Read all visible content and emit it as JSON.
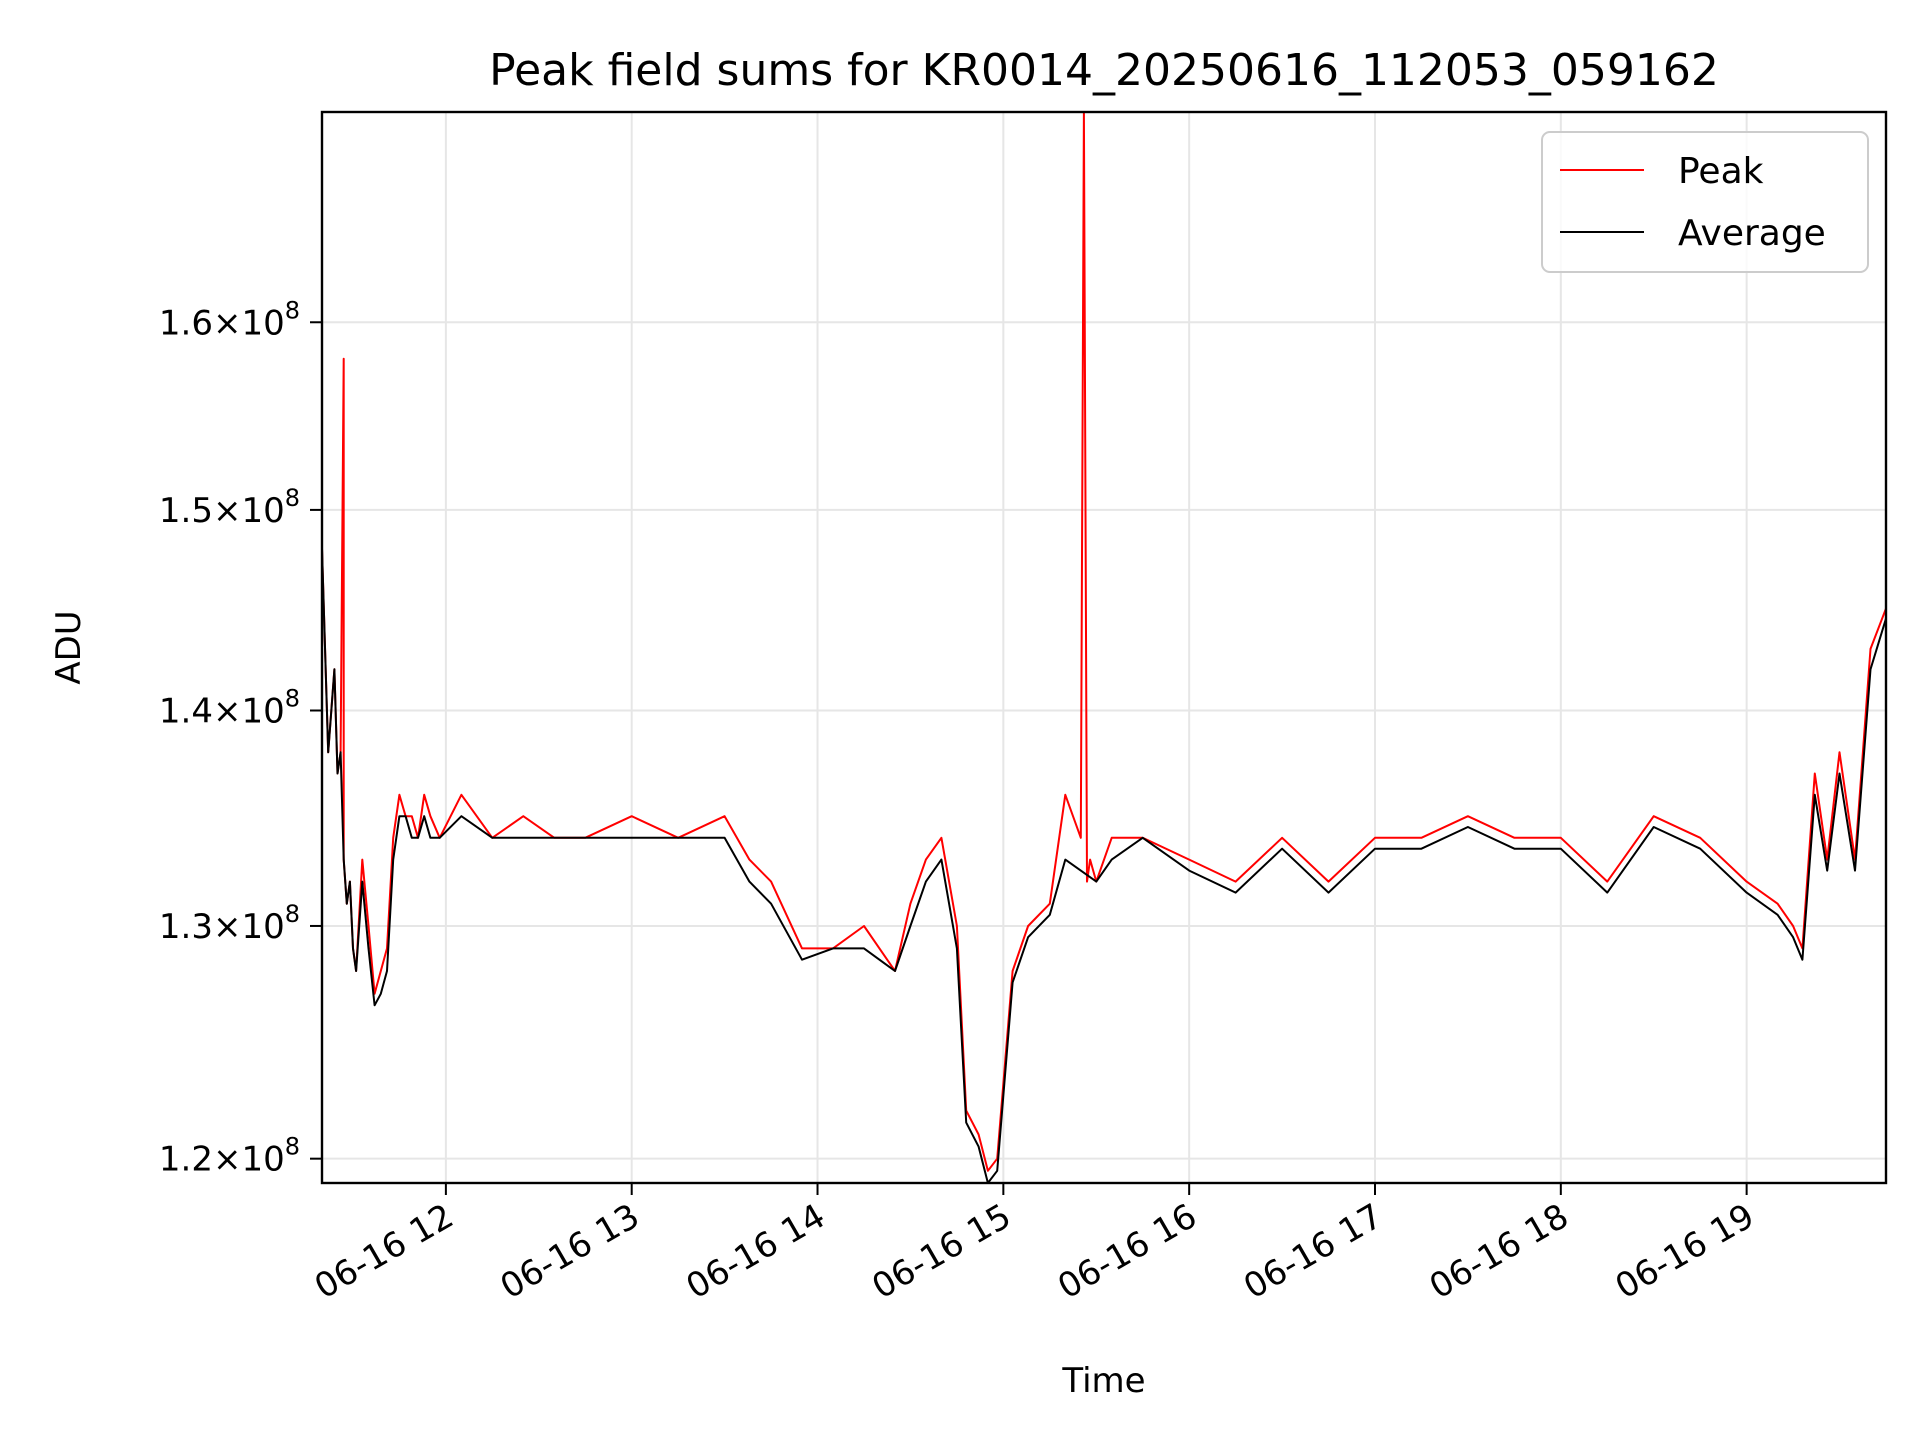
{
  "chart_data": {
    "type": "line",
    "title": "Peak field sums for KR0014_20250616_112053_059162",
    "xlabel": "Time",
    "ylabel": "ADU",
    "xlim": [
      "2025-06-16 11:20",
      "2025-06-16 19:45"
    ],
    "ylim": [
      119000000,
      172000000
    ],
    "y_scale": "log",
    "grid": true,
    "legend": {
      "position": "top-right"
    },
    "x_ticks": [
      "06-16 12",
      "06-16 13",
      "06-16 14",
      "06-16 15",
      "06-16 16",
      "06-16 17",
      "06-16 18",
      "06-16 19"
    ],
    "y_ticks": [
      {
        "value": 120000000,
        "mantissa": "1.2",
        "exponent": "8"
      },
      {
        "value": 130000000,
        "mantissa": "1.3",
        "exponent": "8"
      },
      {
        "value": 140000000,
        "mantissa": "1.4",
        "exponent": "8"
      },
      {
        "value": 150000000,
        "mantissa": "1.5",
        "exponent": "8"
      },
      {
        "value": 160000000,
        "mantissa": "1.6",
        "exponent": "8"
      }
    ],
    "series": [
      {
        "name": "Peak",
        "color": "#ff0000",
        "x": [
          "2025-06-16 11:20",
          "2025-06-16 11:22",
          "2025-06-16 11:24",
          "2025-06-16 11:25",
          "2025-06-16 11:26",
          "2025-06-16 11:27",
          "2025-06-16 11:27",
          "2025-06-16 11:28",
          "2025-06-16 11:29",
          "2025-06-16 11:30",
          "2025-06-16 11:31",
          "2025-06-16 11:33",
          "2025-06-16 11:35",
          "2025-06-16 11:37",
          "2025-06-16 11:39",
          "2025-06-16 11:41",
          "2025-06-16 11:43",
          "2025-06-16 11:45",
          "2025-06-16 11:47",
          "2025-06-16 11:49",
          "2025-06-16 11:51",
          "2025-06-16 11:53",
          "2025-06-16 11:55",
          "2025-06-16 11:58",
          "2025-06-16 12:05",
          "2025-06-16 12:15",
          "2025-06-16 12:25",
          "2025-06-16 12:35",
          "2025-06-16 12:45",
          "2025-06-16 13:00",
          "2025-06-16 13:15",
          "2025-06-16 13:30",
          "2025-06-16 13:38",
          "2025-06-16 13:45",
          "2025-06-16 13:55",
          "2025-06-16 14:05",
          "2025-06-16 14:15",
          "2025-06-16 14:25",
          "2025-06-16 14:30",
          "2025-06-16 14:35",
          "2025-06-16 14:40",
          "2025-06-16 14:45",
          "2025-06-16 14:48",
          "2025-06-16 14:52",
          "2025-06-16 14:55",
          "2025-06-16 14:58",
          "2025-06-16 15:03",
          "2025-06-16 15:08",
          "2025-06-16 15:15",
          "2025-06-16 15:20",
          "2025-06-16 15:25",
          "2025-06-16 15:26",
          "2025-06-16 15:27",
          "2025-06-16 15:28",
          "2025-06-16 15:30",
          "2025-06-16 15:35",
          "2025-06-16 15:45",
          "2025-06-16 16:00",
          "2025-06-16 16:15",
          "2025-06-16 16:30",
          "2025-06-16 16:45",
          "2025-06-16 17:00",
          "2025-06-16 17:15",
          "2025-06-16 17:30",
          "2025-06-16 17:45",
          "2025-06-16 18:00",
          "2025-06-16 18:15",
          "2025-06-16 18:30",
          "2025-06-16 18:45",
          "2025-06-16 19:00",
          "2025-06-16 19:10",
          "2025-06-16 19:15",
          "2025-06-16 19:18",
          "2025-06-16 19:22",
          "2025-06-16 19:26",
          "2025-06-16 19:30",
          "2025-06-16 19:35",
          "2025-06-16 19:40",
          "2025-06-16 19:45"
        ],
        "y": [
          148000000,
          138000000,
          142000000,
          137000000,
          138000000,
          158000000,
          133000000,
          131000000,
          132000000,
          129000000,
          128000000,
          133000000,
          130000000,
          127000000,
          128000000,
          129000000,
          134000000,
          136000000,
          135000000,
          135000000,
          134000000,
          136000000,
          135000000,
          134000000,
          136000000,
          134000000,
          135000000,
          134000000,
          134000000,
          135000000,
          134000000,
          135000000,
          133000000,
          132000000,
          129000000,
          129000000,
          130000000,
          128000000,
          131000000,
          133000000,
          134000000,
          130000000,
          122000000,
          121000000,
          119500000,
          120000000,
          128000000,
          130000000,
          131000000,
          136000000,
          134000000,
          172000000,
          132000000,
          133000000,
          132000000,
          134000000,
          134000000,
          133000000,
          132000000,
          134000000,
          132000000,
          134000000,
          134000000,
          135000000,
          134000000,
          134000000,
          132000000,
          135000000,
          134000000,
          132000000,
          131000000,
          130000000,
          129000000,
          137000000,
          133000000,
          138000000,
          133000000,
          143000000,
          145000000
        ]
      },
      {
        "name": "Average",
        "color": "#000000",
        "x": [
          "2025-06-16 11:20",
          "2025-06-16 11:22",
          "2025-06-16 11:24",
          "2025-06-16 11:25",
          "2025-06-16 11:26",
          "2025-06-16 11:27",
          "2025-06-16 11:28",
          "2025-06-16 11:29",
          "2025-06-16 11:30",
          "2025-06-16 11:31",
          "2025-06-16 11:33",
          "2025-06-16 11:35",
          "2025-06-16 11:37",
          "2025-06-16 11:39",
          "2025-06-16 11:41",
          "2025-06-16 11:43",
          "2025-06-16 11:45",
          "2025-06-16 11:47",
          "2025-06-16 11:49",
          "2025-06-16 11:51",
          "2025-06-16 11:53",
          "2025-06-16 11:55",
          "2025-06-16 11:58",
          "2025-06-16 12:05",
          "2025-06-16 12:15",
          "2025-06-16 12:25",
          "2025-06-16 12:35",
          "2025-06-16 12:45",
          "2025-06-16 13:00",
          "2025-06-16 13:15",
          "2025-06-16 13:30",
          "2025-06-16 13:38",
          "2025-06-16 13:45",
          "2025-06-16 13:55",
          "2025-06-16 14:05",
          "2025-06-16 14:15",
          "2025-06-16 14:25",
          "2025-06-16 14:30",
          "2025-06-16 14:35",
          "2025-06-16 14:40",
          "2025-06-16 14:45",
          "2025-06-16 14:48",
          "2025-06-16 14:52",
          "2025-06-16 14:55",
          "2025-06-16 14:58",
          "2025-06-16 15:03",
          "2025-06-16 15:08",
          "2025-06-16 15:15",
          "2025-06-16 15:20",
          "2025-06-16 15:25",
          "2025-06-16 15:30",
          "2025-06-16 15:35",
          "2025-06-16 15:45",
          "2025-06-16 16:00",
          "2025-06-16 16:15",
          "2025-06-16 16:30",
          "2025-06-16 16:45",
          "2025-06-16 17:00",
          "2025-06-16 17:15",
          "2025-06-16 17:30",
          "2025-06-16 17:45",
          "2025-06-16 18:00",
          "2025-06-16 18:15",
          "2025-06-16 18:30",
          "2025-06-16 18:45",
          "2025-06-16 19:00",
          "2025-06-16 19:10",
          "2025-06-16 19:15",
          "2025-06-16 19:18",
          "2025-06-16 19:22",
          "2025-06-16 19:26",
          "2025-06-16 19:30",
          "2025-06-16 19:35",
          "2025-06-16 19:40",
          "2025-06-16 19:45"
        ],
        "y": [
          148000000,
          138000000,
          142000000,
          137000000,
          138000000,
          133000000,
          131000000,
          132000000,
          129000000,
          128000000,
          132000000,
          129000000,
          126500000,
          127000000,
          128000000,
          133000000,
          135000000,
          135000000,
          134000000,
          134000000,
          135000000,
          134000000,
          134000000,
          135000000,
          134000000,
          134000000,
          134000000,
          134000000,
          134000000,
          134000000,
          134000000,
          132000000,
          131000000,
          128500000,
          129000000,
          129000000,
          128000000,
          130000000,
          132000000,
          133000000,
          129000000,
          121500000,
          120500000,
          119000000,
          119500000,
          127500000,
          129500000,
          130500000,
          133000000,
          132500000,
          132000000,
          133000000,
          134000000,
          132500000,
          131500000,
          133500000,
          131500000,
          133500000,
          133500000,
          134500000,
          133500000,
          133500000,
          131500000,
          134500000,
          133500000,
          131500000,
          130500000,
          129500000,
          128500000,
          136000000,
          132500000,
          137000000,
          132500000,
          142000000,
          144500000
        ]
      }
    ]
  }
}
